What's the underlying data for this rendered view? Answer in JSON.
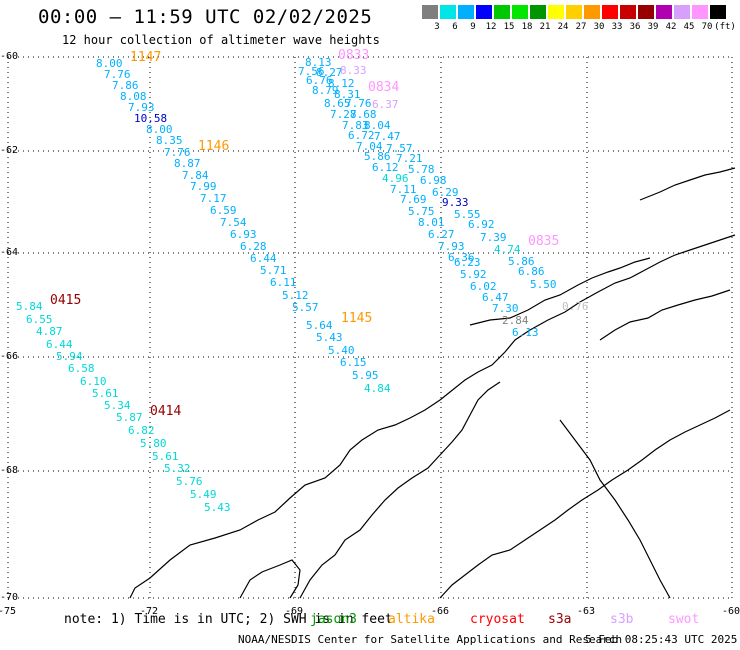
{
  "header": {
    "title": "00:00 – 11:59 UTC 02/02/2025",
    "subtitle": "12 hour collection of altimeter wave heights"
  },
  "scale": {
    "colors": [
      "#7f7f7f",
      "#00e6e6",
      "#00b0ff",
      "#0000ff",
      "#00c800",
      "#00e600",
      "#009600",
      "#ffff00",
      "#ffd000",
      "#ff9900",
      "#ff0000",
      "#c80000",
      "#960000",
      "#b000b0",
      "#d7a0ff",
      "#ff96ff",
      "#000000"
    ],
    "labels": [
      "3",
      "6",
      "9",
      "12",
      "15",
      "18",
      "21",
      "24",
      "27",
      "30",
      "33",
      "36",
      "39",
      "42",
      "45",
      "70",
      "(ft)"
    ]
  },
  "axes": {
    "lat_labels": [
      "-60",
      "-62",
      "-64",
      "-66",
      "-68",
      "-70"
    ],
    "lon_labels": [
      "-75",
      "-72",
      "-69",
      "-66",
      "-63",
      "-60"
    ]
  },
  "passes": [
    {
      "label": "1147",
      "color": "#ff9900"
    },
    {
      "label": "1146",
      "color": "#ff9900"
    },
    {
      "label": "1145",
      "color": "#ff9900"
    },
    {
      "label": "0833",
      "color": "#ff96ff"
    },
    {
      "label": "0834",
      "color": "#ff96ff"
    },
    {
      "label": "0835",
      "color": "#ff96ff"
    },
    {
      "label": "0415",
      "color": "#960000"
    },
    {
      "label": "0414",
      "color": "#960000"
    }
  ],
  "observations": [
    {
      "v": "8.00",
      "c": "#00b0ff"
    },
    {
      "v": "7.76",
      "c": "#00b0ff"
    },
    {
      "v": "7.86",
      "c": "#00b0ff"
    },
    {
      "v": "8.08",
      "c": "#00b0ff"
    },
    {
      "v": "7.93",
      "c": "#00b0ff"
    },
    {
      "v": "10.58",
      "c": "#0000c0"
    },
    {
      "v": "8.00",
      "c": "#00b0ff"
    },
    {
      "v": "8.35",
      "c": "#00b0ff"
    },
    {
      "v": "7.76",
      "c": "#00b0ff"
    },
    {
      "v": "8.87",
      "c": "#00b0ff"
    },
    {
      "v": "7.84",
      "c": "#00b0ff"
    },
    {
      "v": "7.99",
      "c": "#00b0ff"
    },
    {
      "v": "7.17",
      "c": "#00b0ff"
    },
    {
      "v": "6.59",
      "c": "#00b0ff"
    },
    {
      "v": "7.54",
      "c": "#00b0ff"
    },
    {
      "v": "6.93",
      "c": "#00b0ff"
    },
    {
      "v": "6.28",
      "c": "#00b0ff"
    },
    {
      "v": "6.44",
      "c": "#00b0ff"
    },
    {
      "v": "5.71",
      "c": "#00b0ff"
    },
    {
      "v": "6.11",
      "c": "#00b0ff"
    },
    {
      "v": "5.12",
      "c": "#00b0ff"
    },
    {
      "v": "5.57",
      "c": "#00b0ff"
    },
    {
      "v": "5.64",
      "c": "#00b0ff"
    },
    {
      "v": "5.43",
      "c": "#00b0ff"
    },
    {
      "v": "5.40",
      "c": "#00b0ff"
    },
    {
      "v": "6.15",
      "c": "#00b0ff"
    },
    {
      "v": "5.95",
      "c": "#00b0ff"
    },
    {
      "v": "4.84",
      "c": "#00d8d8"
    },
    {
      "v": "8.13",
      "c": "#00b0ff"
    },
    {
      "v": "7.56",
      "c": "#00b0ff"
    },
    {
      "v": "8.27",
      "c": "#00b0ff"
    },
    {
      "v": "6.76",
      "c": "#00b0ff"
    },
    {
      "v": "8.12",
      "c": "#00b0ff"
    },
    {
      "v": "8.79",
      "c": "#00b0ff"
    },
    {
      "v": "8.31",
      "c": "#00b0ff"
    },
    {
      "v": "8.65",
      "c": "#00b0ff"
    },
    {
      "v": "7.76",
      "c": "#00b0ff"
    },
    {
      "v": "7.28",
      "c": "#00b0ff"
    },
    {
      "v": "7.68",
      "c": "#00b0ff"
    },
    {
      "v": "7.83",
      "c": "#00b0ff"
    },
    {
      "v": "8.04",
      "c": "#00b0ff"
    },
    {
      "v": "6.72",
      "c": "#00b0ff"
    },
    {
      "v": "7.47",
      "c": "#00b0ff"
    },
    {
      "v": "7.04",
      "c": "#00b0ff"
    },
    {
      "v": "7.57",
      "c": "#00b0ff"
    },
    {
      "v": "5.86",
      "c": "#00b0ff"
    },
    {
      "v": "7.21",
      "c": "#00b0ff"
    },
    {
      "v": "6.12",
      "c": "#00b0ff"
    },
    {
      "v": "5.78",
      "c": "#00b0ff"
    },
    {
      "v": "4.96",
      "c": "#00d8d8"
    },
    {
      "v": "6.98",
      "c": "#00b0ff"
    },
    {
      "v": "7.11",
      "c": "#00b0ff"
    },
    {
      "v": "6.29",
      "c": "#00b0ff"
    },
    {
      "v": "7.69",
      "c": "#00b0ff"
    },
    {
      "v": "9.33",
      "c": "#0000c0"
    },
    {
      "v": "5.75",
      "c": "#00b0ff"
    },
    {
      "v": "5.55",
      "c": "#00b0ff"
    },
    {
      "v": "8.01",
      "c": "#00b0ff"
    },
    {
      "v": "6.92",
      "c": "#00b0ff"
    },
    {
      "v": "6.27",
      "c": "#00b0ff"
    },
    {
      "v": "7.39",
      "c": "#00b0ff"
    },
    {
      "v": "7.93",
      "c": "#00b0ff"
    },
    {
      "v": "4.74",
      "c": "#00d8d8"
    },
    {
      "v": "6.36",
      "c": "#00b0ff"
    },
    {
      "v": "6.23",
      "c": "#00b0ff"
    },
    {
      "v": "5.86",
      "c": "#00b0ff"
    },
    {
      "v": "5.92",
      "c": "#00b0ff"
    },
    {
      "v": "6.86",
      "c": "#00b0ff"
    },
    {
      "v": "6.02",
      "c": "#00b0ff"
    },
    {
      "v": "5.50",
      "c": "#00b0ff"
    },
    {
      "v": "6.47",
      "c": "#00b0ff"
    },
    {
      "v": "7.30",
      "c": "#00b0ff"
    },
    {
      "v": "2.84",
      "c": "#7f7f7f"
    },
    {
      "v": "6.13",
      "c": "#00b0ff"
    },
    {
      "v": "8.33",
      "c": "#d7a0ff"
    },
    {
      "v": "6.37",
      "c": "#d7a0ff"
    },
    {
      "v": "0.76",
      "c": "#c0c0c0"
    },
    {
      "v": "5.84",
      "c": "#00d8d8"
    },
    {
      "v": "6.55",
      "c": "#00d8d8"
    },
    {
      "v": "4.87",
      "c": "#00d8d8"
    },
    {
      "v": "6.44",
      "c": "#00d8d8"
    },
    {
      "v": "5.94",
      "c": "#00d8d8"
    },
    {
      "v": "6.58",
      "c": "#00d8d8"
    },
    {
      "v": "6.10",
      "c": "#00d8d8"
    },
    {
      "v": "5.61",
      "c": "#00d8d8"
    },
    {
      "v": "5.34",
      "c": "#00d8d8"
    },
    {
      "v": "5.87",
      "c": "#00d8d8"
    },
    {
      "v": "6.82",
      "c": "#00d8d8"
    },
    {
      "v": "5.80",
      "c": "#00d8d8"
    },
    {
      "v": "5.61",
      "c": "#00d8d8"
    },
    {
      "v": "5.32",
      "c": "#00d8d8"
    },
    {
      "v": "5.76",
      "c": "#00d8d8"
    },
    {
      "v": "5.49",
      "c": "#00d8d8"
    },
    {
      "v": "5.43",
      "c": "#00d8d8"
    }
  ],
  "legend": {
    "note": "note: 1) Time is in UTC; 2) SWH is in feet",
    "items": [
      {
        "label": "jason3",
        "color": "#009600"
      },
      {
        "label": "altika",
        "color": "#ff9900"
      },
      {
        "label": "cryosat",
        "color": "#ff0000"
      },
      {
        "label": "s3a",
        "color": "#960000"
      },
      {
        "label": "s3b",
        "color": "#d7a0ff"
      },
      {
        "label": "swot",
        "color": "#ff96ff"
      }
    ]
  },
  "footer": {
    "agency": "NOAA/NESDIS Center for Satellite Applications and Research",
    "timestamp": "5 Feb 08:25:43 UTC 2025"
  }
}
